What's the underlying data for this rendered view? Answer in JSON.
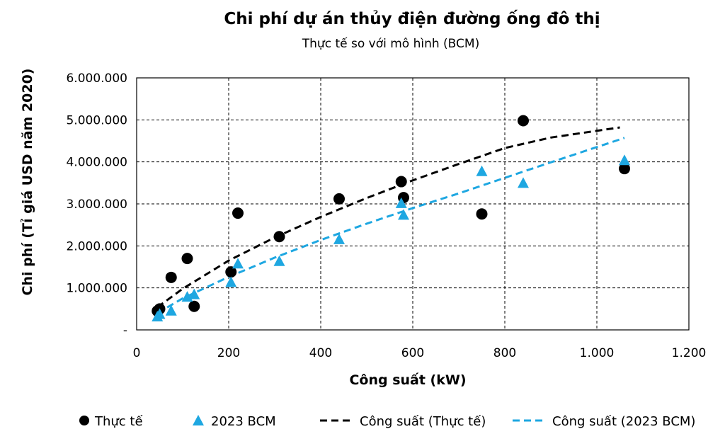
{
  "chart_data": {
    "type": "scatter",
    "title": "Chi phí dự án thủy điện đường ống đô thị",
    "subtitle": "Thực tế so với mô hình (BCM)",
    "xlabel": "Công suất (kW)",
    "ylabel": "Chi phí (Tỉ giá USD năm 2020)",
    "xlim": [
      0,
      1200
    ],
    "ylim": [
      0,
      6000000
    ],
    "x_ticks": [
      0,
      200,
      400,
      600,
      800,
      1000,
      1200
    ],
    "x_tick_labels": [
      "0",
      "200",
      "400",
      "600",
      "800",
      "1.000",
      "1.200"
    ],
    "y_ticks": [
      0,
      1000000,
      2000000,
      3000000,
      4000000,
      5000000,
      6000000
    ],
    "y_tick_labels": [
      "-",
      "1.000.000",
      "2.000.000",
      "3.000.000",
      "4.000.000",
      "5.000.000",
      "6.000.000"
    ],
    "grid": true,
    "legend_position": "bottom",
    "series": [
      {
        "name": "Thực tế",
        "kind": "marker-circle",
        "color": "#000000",
        "points": [
          [
            45,
            450000
          ],
          [
            50,
            500000
          ],
          [
            75,
            1250000
          ],
          [
            110,
            1700000
          ],
          [
            125,
            560000
          ],
          [
            205,
            1380000
          ],
          [
            220,
            2780000
          ],
          [
            310,
            2220000
          ],
          [
            440,
            3120000
          ],
          [
            575,
            3530000
          ],
          [
            580,
            3150000
          ],
          [
            750,
            2760000
          ],
          [
            840,
            4980000
          ],
          [
            1060,
            3840000
          ]
        ]
      },
      {
        "name": "2023 BCM",
        "kind": "marker-triangle",
        "color": "#1ea7e1",
        "points": [
          [
            45,
            320000
          ],
          [
            50,
            380000
          ],
          [
            75,
            460000
          ],
          [
            110,
            790000
          ],
          [
            125,
            850000
          ],
          [
            205,
            1140000
          ],
          [
            220,
            1580000
          ],
          [
            310,
            1640000
          ],
          [
            440,
            2160000
          ],
          [
            575,
            3020000
          ],
          [
            580,
            2740000
          ],
          [
            750,
            3780000
          ],
          [
            840,
            3500000
          ],
          [
            1060,
            4040000
          ]
        ]
      },
      {
        "name": "Công suất (Thực tế)",
        "kind": "dashed-line",
        "color": "#000000",
        "points": [
          [
            45,
            540000
          ],
          [
            100,
            980000
          ],
          [
            200,
            1650000
          ],
          [
            300,
            2200000
          ],
          [
            400,
            2690000
          ],
          [
            500,
            3140000
          ],
          [
            600,
            3560000
          ],
          [
            700,
            3950000
          ],
          [
            800,
            4330000
          ],
          [
            900,
            4580000
          ],
          [
            1050,
            4820000
          ]
        ]
      },
      {
        "name": "Công suất (2023 BCM)",
        "kind": "dashed-line",
        "color": "#1ea7e1",
        "points": [
          [
            45,
            400000
          ],
          [
            100,
            750000
          ],
          [
            200,
            1260000
          ],
          [
            300,
            1720000
          ],
          [
            400,
            2140000
          ],
          [
            500,
            2530000
          ],
          [
            600,
            2900000
          ],
          [
            700,
            3250000
          ],
          [
            800,
            3620000
          ],
          [
            900,
            3990000
          ],
          [
            1060,
            4570000
          ]
        ]
      }
    ]
  }
}
